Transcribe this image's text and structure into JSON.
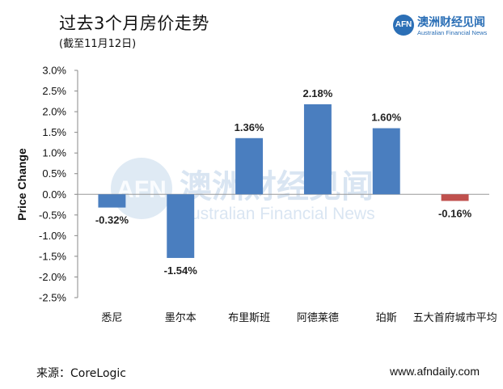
{
  "header": {
    "title": "过去3个月房价走势",
    "subtitle": "(截至11月12日)"
  },
  "logo": {
    "mark": "AFN",
    "name_cn": "澳洲财经见闻",
    "name_en": "Australian Financial News"
  },
  "watermark": {
    "name_cn": "澳洲财经见闻",
    "name_en": "Australian Financial News",
    "mark": "AFN"
  },
  "footer": {
    "source": "来源：CoreLogic",
    "website": "www.afndaily.com"
  },
  "colors": {
    "positive_bar": "#4a7ebf",
    "negative_highlight_bar": "#c0504d",
    "brand": "#2b6fb6"
  },
  "chart_data": {
    "type": "bar",
    "title": "过去3个月房价走势",
    "subtitle": "(截至11月12日)",
    "xlabel": "",
    "ylabel": "Price Change",
    "categories": [
      "悉尼",
      "墨尔本",
      "布里斯班",
      "阿德莱德",
      "珀斯",
      "五大首府城市平均"
    ],
    "values": [
      -0.32,
      -1.54,
      1.36,
      2.18,
      1.6,
      -0.16
    ],
    "data_labels": [
      "-0.32%",
      "-1.54%",
      "1.36%",
      "2.18%",
      "1.60%",
      "-0.16%"
    ],
    "bar_colors": [
      "#4a7ebf",
      "#4a7ebf",
      "#4a7ebf",
      "#4a7ebf",
      "#4a7ebf",
      "#c0504d"
    ],
    "ylim": [
      -2.5,
      3.0
    ],
    "yticks": [
      3.0,
      2.5,
      2.0,
      1.5,
      1.0,
      0.5,
      0.0,
      -0.5,
      -1.0,
      -1.5,
      -2.0,
      -2.5
    ],
    "ytick_labels": [
      "3.0%",
      "2.5%",
      "2.0%",
      "1.5%",
      "1.0%",
      "0.5%",
      "0.0%",
      "-0.5%",
      "-1.0%",
      "-1.5%",
      "-2.0%",
      "-2.5%"
    ],
    "grid": false,
    "legend": "none"
  }
}
